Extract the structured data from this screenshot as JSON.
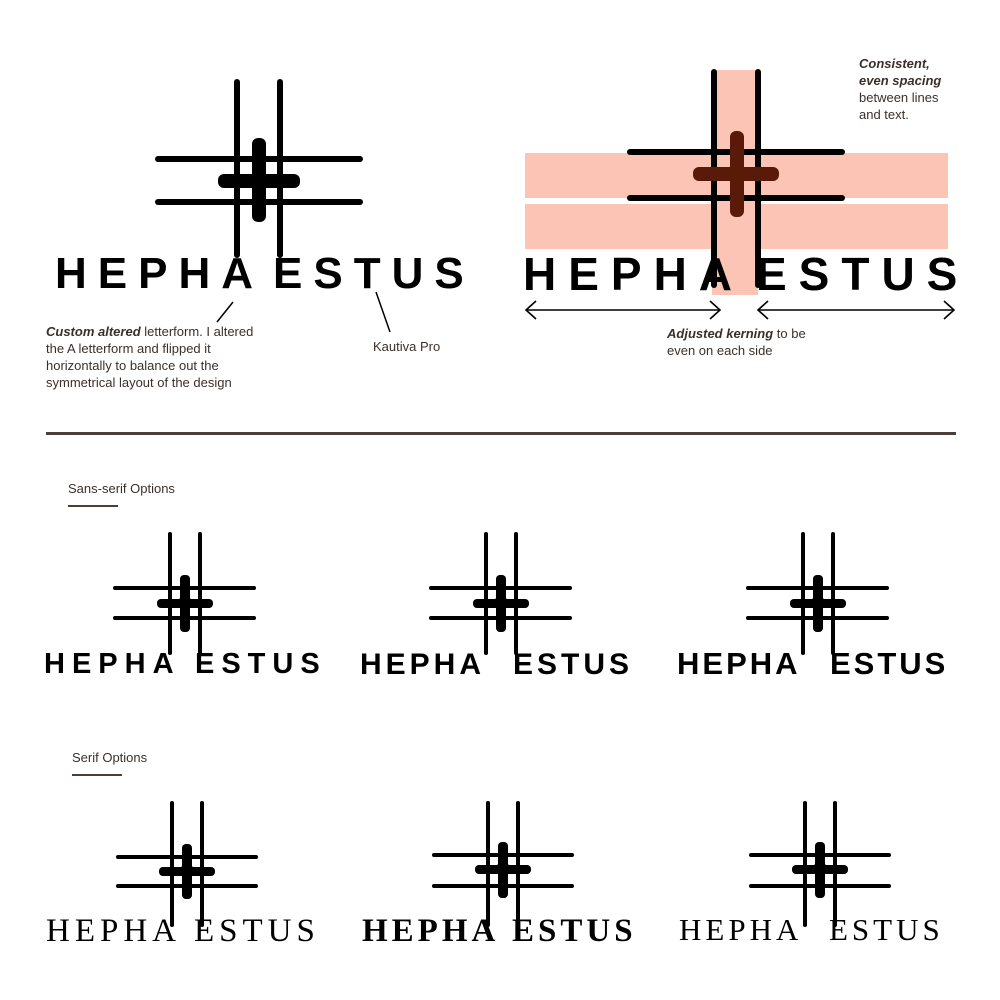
{
  "brand": {
    "part1": "HEPHA",
    "part2": "ESTUS"
  },
  "annotations": {
    "custom_altered": {
      "bold": "Custom altered",
      "rest": " letterform. I altered the A letterform and flipped it horizontally to balance out the symmetrical layout of the design"
    },
    "font_name": "Kautiva Pro",
    "spacing": {
      "bold": "Consistent, even spacing",
      "rest": " between lines and text."
    },
    "kerning": {
      "bold": "Adjusted kerning",
      "rest": " to be even on each side"
    }
  },
  "sections": {
    "sans": "Sans-serif Options",
    "serif": "Serif Options"
  },
  "colors": {
    "highlight": "#fbc4b4",
    "ink": "#000000",
    "text": "#3a302b",
    "divider": "#4a3e39"
  }
}
